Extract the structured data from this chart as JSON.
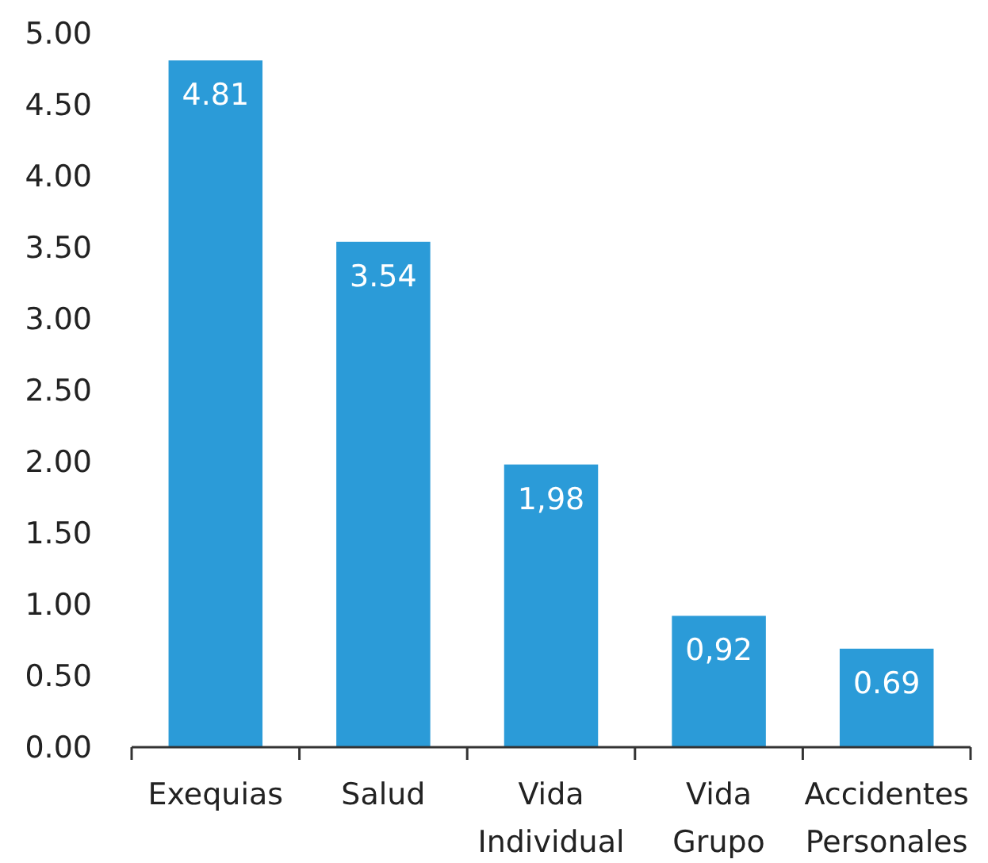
{
  "chart_data": {
    "type": "bar",
    "categories": [
      "Exequias",
      "Salud",
      "Vida Individual",
      "Vida Grupo",
      "Accidentes Personales"
    ],
    "values": [
      4.81,
      3.54,
      1.98,
      0.92,
      0.69
    ],
    "value_labels": [
      "4.81",
      "3.54",
      "1,98",
      "0,92",
      "0.69"
    ],
    "color": "#2b9bd8",
    "ylim": [
      0,
      5
    ],
    "yticks": [
      {
        "value": 0,
        "label": "0.00"
      },
      {
        "value": 0.5,
        "label": "0.50"
      },
      {
        "value": 1,
        "label": "1.00"
      },
      {
        "value": 1.5,
        "label": "1.50"
      },
      {
        "value": 2,
        "label": "2.00"
      },
      {
        "value": 2.5,
        "label": "2.50"
      },
      {
        "value": 3,
        "label": "3.00"
      },
      {
        "value": 3.5,
        "label": "3.50"
      },
      {
        "value": 4,
        "label": "4.00"
      },
      {
        "value": 4.5,
        "label": "4.50"
      },
      {
        "value": 5,
        "label": "5.00"
      }
    ],
    "grid": false
  }
}
